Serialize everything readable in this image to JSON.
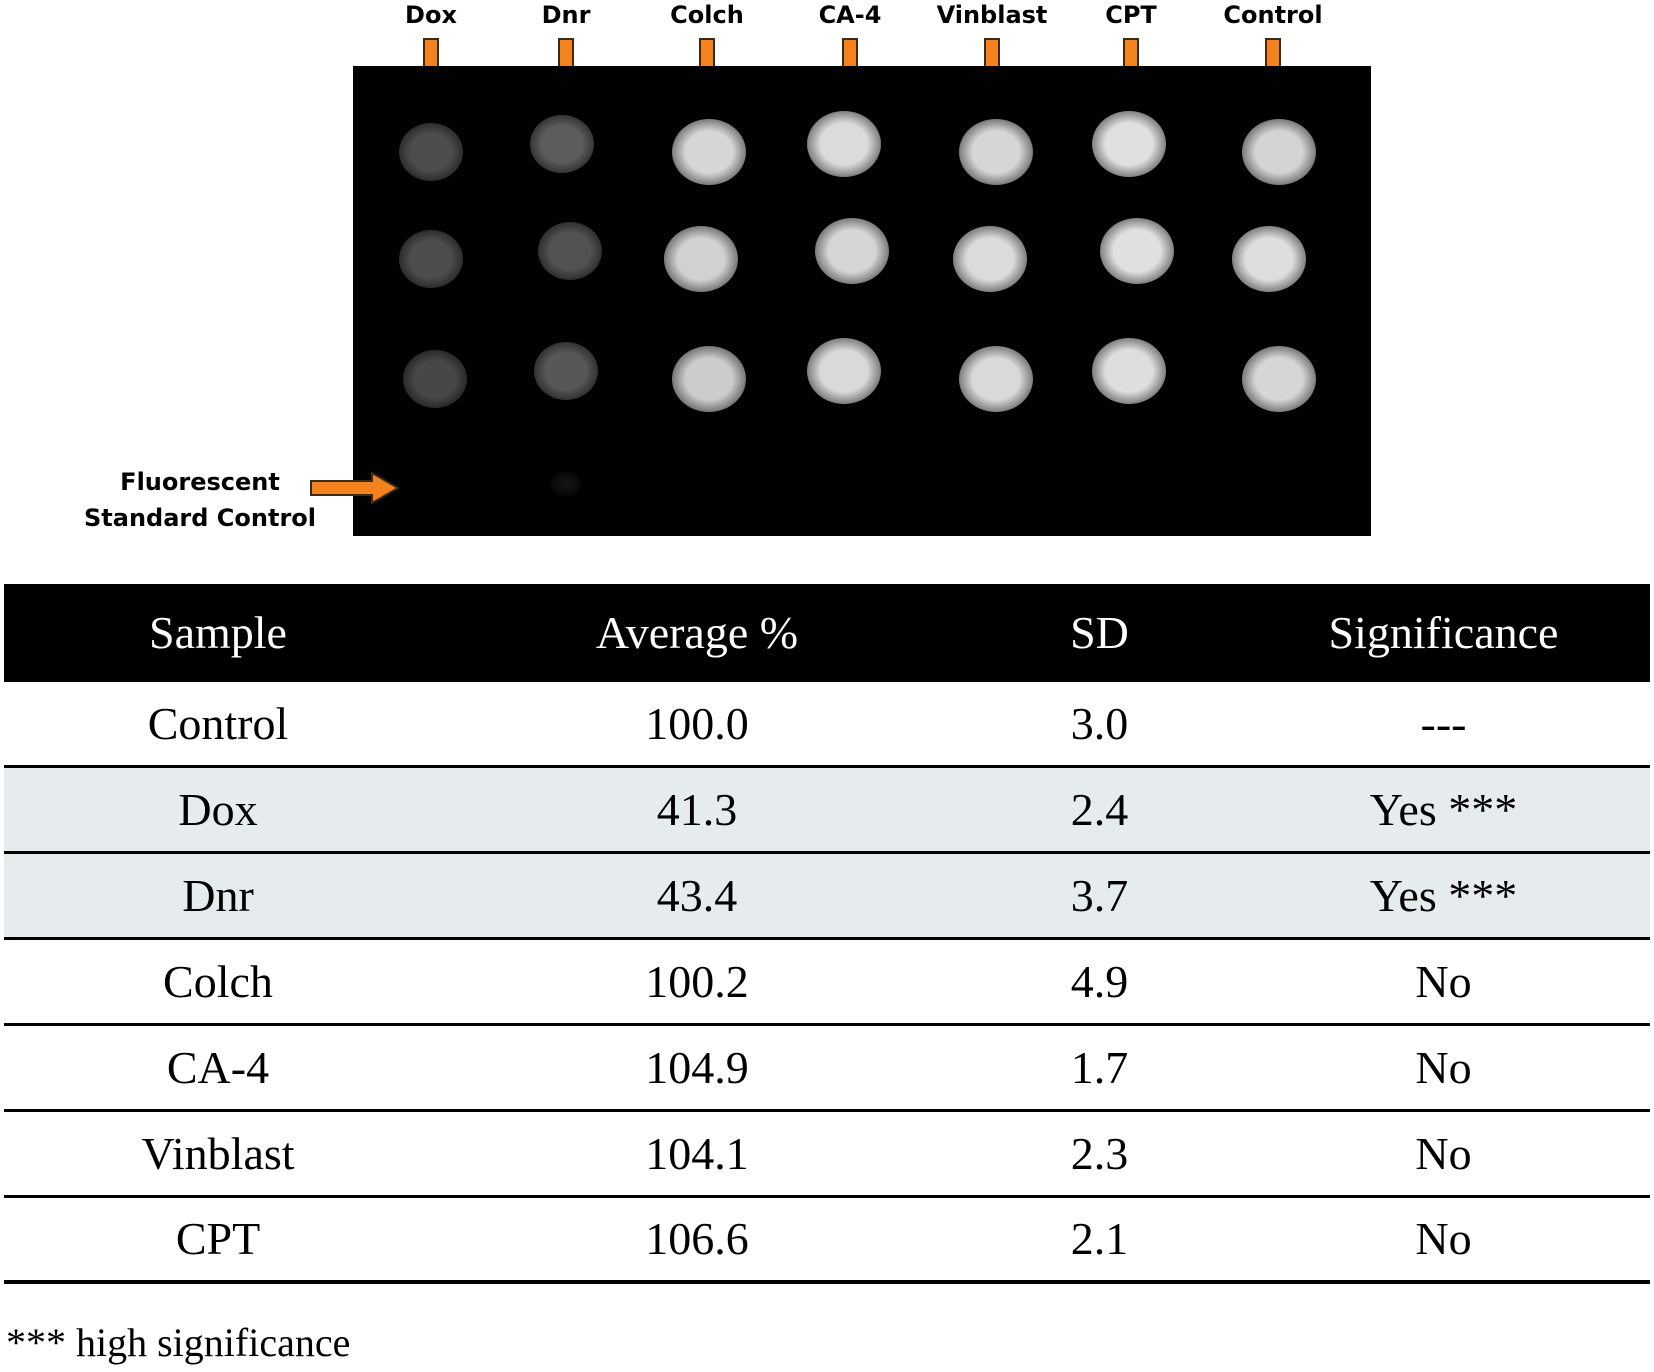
{
  "figure": {
    "lanes": [
      {
        "label": "Dox",
        "spots": [
          0.3,
          0.3,
          0.28
        ]
      },
      {
        "label": "Dnr",
        "spots": [
          0.36,
          0.32,
          0.34
        ]
      },
      {
        "label": "Colch",
        "spots": [
          0.84,
          0.82,
          0.8
        ]
      },
      {
        "label": "CA-4",
        "spots": [
          0.86,
          0.84,
          0.85
        ]
      },
      {
        "label": "Vinblast",
        "spots": [
          0.84,
          0.86,
          0.85
        ]
      },
      {
        "label": "CPT",
        "spots": [
          0.88,
          0.88,
          0.87
        ]
      },
      {
        "label": "Control",
        "spots": [
          0.83,
          0.87,
          0.84
        ]
      }
    ],
    "standard_label_line1": "Fluorescent",
    "standard_label_line2": "Standard Control",
    "arrow_color": "#f4821f"
  },
  "table": {
    "headers": [
      "Sample",
      "Average %",
      "SD",
      "Significance"
    ],
    "rows": [
      {
        "sample": "Control",
        "average": "100.0",
        "sd": "3.0",
        "significance": "---",
        "shaded": false
      },
      {
        "sample": "Dox",
        "average": "41.3",
        "sd": "2.4",
        "significance": "Yes ***",
        "shaded": true
      },
      {
        "sample": "Dnr",
        "average": "43.4",
        "sd": "3.7",
        "significance": "Yes ***",
        "shaded": true
      },
      {
        "sample": "Colch",
        "average": "100.2",
        "sd": "4.9",
        "significance": "No",
        "shaded": false
      },
      {
        "sample": "CA-4",
        "average": "104.9",
        "sd": "1.7",
        "significance": "No",
        "shaded": false
      },
      {
        "sample": "Vinblast",
        "average": "104.1",
        "sd": "2.3",
        "significance": "No",
        "shaded": false
      },
      {
        "sample": "CPT",
        "average": "106.6",
        "sd": "2.1",
        "significance": "No",
        "shaded": false
      }
    ],
    "footnote": "*** high significance"
  }
}
